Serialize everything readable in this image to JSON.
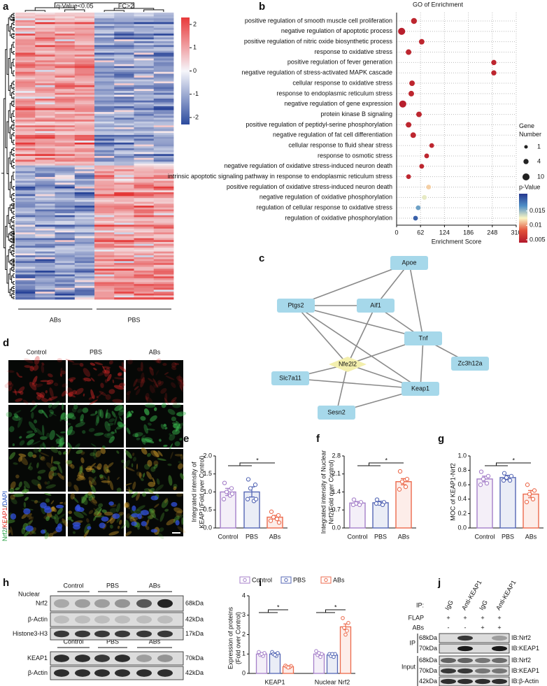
{
  "panel_labels": [
    "a",
    "b",
    "c",
    "d",
    "e",
    "f",
    "g",
    "h",
    "i",
    "j"
  ],
  "heatmap": {
    "header": [
      "q-Value<0.05",
      "FC>2"
    ],
    "groups": [
      "ABs",
      "PBS"
    ],
    "colorbar_lim": [
      -2.3,
      2.3
    ],
    "colorbar_ticks": [
      2,
      1,
      0,
      -1,
      -2
    ]
  },
  "network": {
    "nodes": [
      "Apoe",
      "Ptgs2",
      "Aif1",
      "Tnf",
      "Nfe2l2",
      "Zc3h12a",
      "Slc7a11",
      "Keap1",
      "Sesn2"
    ]
  },
  "immunofluorescence": {
    "columns": [
      "Control",
      "PBS",
      "ABs"
    ],
    "separator": "/",
    "channels": [
      {
        "name": "Nrf2",
        "color": "#1f9e3a"
      },
      {
        "name": "KEAP1",
        "color": "#e3261f"
      },
      {
        "name": "DAPI",
        "color": "#2450c0"
      }
    ]
  },
  "western_nuclear": {
    "fraction": "Nuclear",
    "groups": [
      "Control",
      "PBS",
      "ABs"
    ],
    "rows": [
      {
        "name": "Nrf2",
        "kda": "68kDa"
      },
      {
        "name": "β-Actin",
        "kda": "42kDa"
      },
      {
        "name": "Histone3-H3",
        "kda": "17kDa"
      }
    ],
    "rows_2": [
      {
        "name": "KEAP1",
        "kda": "70kDa"
      },
      {
        "name": "β-Actin",
        "kda": "42kDa"
      }
    ]
  },
  "co_ip": {
    "ip_label": "IP:",
    "lanes": [
      "IgG",
      "Anti-KEAP1",
      "IgG",
      "Anti-KEAP1"
    ],
    "conditions": [
      {
        "name": "FLAP",
        "marks": [
          "+",
          "+",
          "+",
          "+"
        ]
      },
      {
        "name": "ABs",
        "marks": [
          "-",
          "-",
          "+",
          "+"
        ]
      }
    ],
    "sections": [
      "IP",
      "Input"
    ],
    "rows": [
      {
        "kda": "68kDa",
        "ib": "IB:Nrf2"
      },
      {
        "kda": "70kDa",
        "ib": "IB:KEAP1"
      },
      {
        "kda": "68kDa",
        "ib": "IB:Nrf2"
      },
      {
        "kda": "70kDa",
        "ib": "IB:KEAP1"
      },
      {
        "kda": "42kDa",
        "ib": "IB:β-Actin"
      }
    ]
  },
  "chart_data": [
    {
      "type": "scatter",
      "title": "GO of Enrichment",
      "xlabel": "Enrichment Score",
      "categories": [
        "positive regulation of smooth muscle cell proliferation",
        "negative regulation of apoptotic process",
        "positive regulation of nitric oxide biosynthetic process",
        "response to oxidative stress",
        "positive regulation of fever generation",
        "negative regulation of stress-activated MAPK cascade",
        "cellular response to oxidative stress",
        "response to endoplasmic reticulum stress",
        "negative regulation of gene expression",
        "protein kinase B signaling",
        "positive regulation of peptidyl-serine phosphorylation",
        "negative regulation of fat cell differentiation",
        "cellular response to fluid shear stress",
        "response to osmotic stress",
        "negative regulation of oxidative stress-induced neuron death",
        "intrinsic apoptotic signaling pathway in response to endoplasmic reticulum stress",
        "positive regulation of oxidative stress-induced neuron death",
        "negative regulation of oxidative phosphorylation",
        "regulation of cellular response to oxidative stress",
        "regulation of oxidative phosphorylation"
      ],
      "values": [
        45,
        13,
        65,
        31,
        252,
        252,
        40,
        38,
        16,
        58,
        31,
        43,
        91,
        78,
        65,
        31,
        83,
        72,
        56,
        49
      ],
      "gene_number": [
        6,
        10,
        5,
        5,
        4,
        4,
        5,
        5,
        10,
        5,
        5,
        5,
        3,
        3,
        3,
        3,
        3,
        3,
        3,
        3
      ],
      "p_value": [
        0.005,
        0.0045,
        0.005,
        0.005,
        0.005,
        0.005,
        0.005,
        0.005,
        0.0045,
        0.005,
        0.005,
        0.005,
        0.005,
        0.005,
        0.005,
        0.005,
        0.0115,
        0.013,
        0.016,
        0.019
      ],
      "xlim": [
        0,
        310
      ],
      "xticks": [
        0,
        62,
        124,
        186,
        248,
        310
      ],
      "size_legend_title": "Gene Number",
      "size_legend": [
        1,
        4,
        10
      ],
      "color_legend_title": "p-Value",
      "clim": [
        0.004,
        0.021
      ],
      "cticks": [
        0.015,
        0.01,
        0.005
      ],
      "colormap": [
        "#b2182b",
        "#e2523a",
        "#fbf6c4",
        "#4f8fc7",
        "#26378f"
      ],
      "grid": true
    },
    {
      "type": "bar",
      "ylabel": [
        "Integrated intensity of",
        "KEAP1(Fold over Control)"
      ],
      "categories": [
        "Control",
        "PBS",
        "ABs"
      ],
      "values": [
        1.0,
        1.0,
        0.3
      ],
      "errors": [
        0.1,
        0.14,
        0.05
      ],
      "points": [
        [
          1.25,
          1.1,
          1.0,
          0.9,
          0.8,
          0.95
        ],
        [
          1.35,
          1.2,
          1.1,
          0.75,
          0.8,
          0.8
        ],
        [
          0.45,
          0.35,
          0.3,
          0.25,
          0.2,
          0.15
        ]
      ],
      "colors": [
        "#a57fc9",
        "#5567b5",
        "#ec6a4c"
      ],
      "ylim": [
        0,
        2
      ],
      "yticks": [
        {
          "value": 0,
          "label": "0.0"
        },
        0.5,
        {
          "value": 1,
          "label": "1.0"
        },
        1.5,
        {
          "value": 2,
          "label": "2.0"
        }
      ],
      "significance": "*"
    },
    {
      "type": "bar",
      "ylabel": [
        "Integrated intensity of Nuclear",
        "Nrf2(Fold over Control)"
      ],
      "categories": [
        "Control",
        "PBS",
        "ABs"
      ],
      "values": [
        0.97,
        0.98,
        1.8
      ],
      "errors": [
        0.06,
        0.06,
        0.12
      ],
      "points": [
        [
          1.1,
          1.0,
          0.95,
          0.9,
          0.9
        ],
        [
          1.1,
          1.0,
          0.95,
          0.9,
          0.95
        ],
        [
          2.2,
          1.9,
          1.8,
          1.6,
          1.5
        ]
      ],
      "colors": [
        "#a57fc9",
        "#5567b5",
        "#ec6a4c"
      ],
      "ylim": [
        0,
        2.8
      ],
      "yticks": [
        {
          "value": 0,
          "label": "0.0"
        },
        0.7,
        1.4,
        2.1,
        2.8
      ],
      "significance": "*"
    },
    {
      "type": "bar",
      "ylabel": [
        "MOC of KEAP1-Nrf2"
      ],
      "categories": [
        "Control",
        "PBS",
        "ABs"
      ],
      "values": [
        0.68,
        0.7,
        0.47
      ],
      "errors": [
        0.04,
        0.03,
        0.05
      ],
      "points": [
        [
          0.78,
          0.72,
          0.68,
          0.62,
          0.6
        ],
        [
          0.76,
          0.72,
          0.7,
          0.66,
          0.66
        ],
        [
          0.6,
          0.52,
          0.47,
          0.4,
          0.36
        ]
      ],
      "colors": [
        "#a57fc9",
        "#5567b5",
        "#ec6a4c"
      ],
      "ylim": [
        0,
        1
      ],
      "yticks": [
        {
          "value": 0,
          "label": "0.0"
        },
        0.2,
        0.4,
        0.6,
        0.8,
        {
          "value": 1,
          "label": "1.0"
        }
      ],
      "significance": "*"
    },
    {
      "type": "grouped_bar",
      "ylabel": [
        "Expression of proteins",
        "(Fold over Control)"
      ],
      "categories": [
        "KEAP1",
        "Nuclear Nrf2"
      ],
      "series": [
        {
          "name": "Control",
          "color": "#a57fc9",
          "values": [
            1.0,
            1.0
          ],
          "errors": [
            0.07,
            0.07
          ],
          "points": [
            [
              1.1,
              1.05,
              0.95,
              0.9,
              1.0
            ],
            [
              1.15,
              1.0,
              0.95,
              0.85,
              1.05
            ]
          ]
        },
        {
          "name": "PBS",
          "color": "#5567b5",
          "values": [
            1.0,
            0.95
          ],
          "errors": [
            0.06,
            0.05
          ],
          "points": [
            [
              1.1,
              1.05,
              1.0,
              0.9,
              0.95
            ],
            [
              1.0,
              1.0,
              0.9,
              0.85,
              1.0
            ]
          ]
        },
        {
          "name": "ABs",
          "color": "#ec6a4c",
          "values": [
            0.35,
            2.4
          ],
          "errors": [
            0.03,
            0.15
          ],
          "points": [
            [
              0.4,
              0.38,
              0.35,
              0.32,
              0.3
            ],
            [
              2.85,
              2.6,
              2.35,
              2.2,
              2.0
            ]
          ]
        }
      ],
      "ylim": [
        0,
        4
      ],
      "yticks": [
        0,
        1,
        2,
        3,
        4
      ],
      "significance": "*",
      "legend": "top"
    }
  ]
}
